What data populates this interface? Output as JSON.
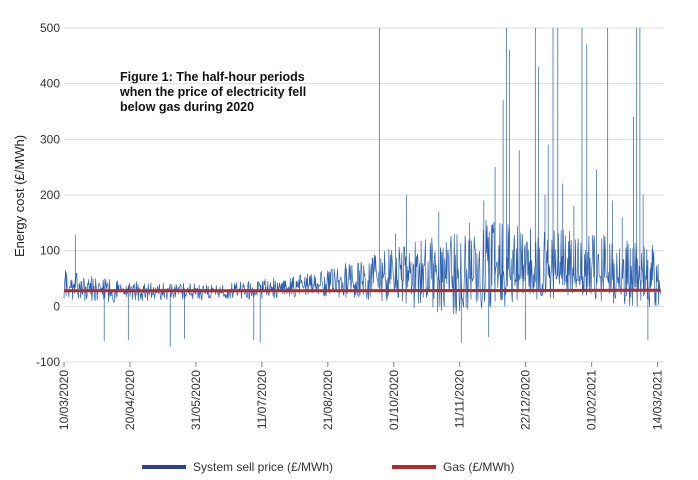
{
  "chart_data": {
    "type": "line",
    "title": "Figure 1: The half-hour periods when the price of electricity fell below gas during 2020",
    "ylabel": "Energy cost (£/MWh)",
    "xlabel": "",
    "ylim": [
      -100,
      500
    ],
    "yticks": [
      -100,
      0,
      100,
      200,
      300,
      400,
      500
    ],
    "x_range": [
      "2020-03-10",
      "2021-03-18"
    ],
    "x_tick_labels": [
      "10/03/2020",
      "20/04/2020",
      "31/05/2020",
      "11/07/2020",
      "21/08/2020",
      "01/10/2020",
      "11/11/2020",
      "22/12/2020",
      "01/02/2021",
      "14/03/2021"
    ],
    "x_tick_dates": [
      "2020-03-10",
      "2020-04-20",
      "2020-05-31",
      "2020-07-11",
      "2020-08-21",
      "2020-10-01",
      "2020-11-11",
      "2020-12-22",
      "2021-02-01",
      "2021-03-14"
    ],
    "grid": true,
    "legend_position": "bottom",
    "colors": {
      "system_sell": "#2b5fad",
      "gas": "#b22a2a",
      "grid": "#dcdcdc",
      "legend_sell": "#2e3f8f"
    },
    "series": [
      {
        "name": "System sell price (£/MWh)",
        "x": [
          "2020-03-10",
          "2020-03-24",
          "2020-04-07",
          "2020-04-21",
          "2020-05-05",
          "2020-05-19",
          "2020-06-02",
          "2020-06-16",
          "2020-06-30",
          "2020-07-14",
          "2020-07-28",
          "2020-08-11",
          "2020-08-25",
          "2020-09-08",
          "2020-09-22",
          "2020-10-06",
          "2020-10-20",
          "2020-11-03",
          "2020-11-17",
          "2020-12-01",
          "2020-12-15",
          "2020-12-29",
          "2021-01-12",
          "2021-01-26",
          "2021-02-09",
          "2021-02-23",
          "2021-03-09",
          "2021-03-16"
        ],
        "values": [
          33,
          35,
          30,
          28,
          25,
          27,
          22,
          26,
          27,
          29,
          33,
          38,
          42,
          45,
          48,
          46,
          48,
          50,
          50,
          55,
          58,
          54,
          56,
          54,
          52,
          50,
          48,
          46
        ],
        "upper": [
          70,
          55,
          50,
          46,
          42,
          44,
          40,
          44,
          45,
          50,
          55,
          60,
          70,
          85,
          100,
          110,
          120,
          130,
          140,
          160,
          150,
          140,
          140,
          130,
          130,
          120,
          110,
          100
        ],
        "lower": [
          -10,
          0,
          0,
          5,
          5,
          10,
          8,
          12,
          8,
          10,
          10,
          15,
          10,
          5,
          0,
          -10,
          -20,
          -30,
          -35,
          -20,
          -10,
          0,
          5,
          0,
          -5,
          -10,
          -15,
          -10
        ],
        "spikes": [
          {
            "x": "2020-03-17",
            "y": 128
          },
          {
            "x": "2020-04-04",
            "y": -62
          },
          {
            "x": "2020-04-19",
            "y": -60
          },
          {
            "x": "2020-05-15",
            "y": -72
          },
          {
            "x": "2020-05-24",
            "y": -58
          },
          {
            "x": "2020-07-06",
            "y": -60
          },
          {
            "x": "2020-07-10",
            "y": -65
          },
          {
            "x": "2020-09-22",
            "y": 500
          },
          {
            "x": "2020-09-22",
            "y": 180
          },
          {
            "x": "2020-10-02",
            "y": 130
          },
          {
            "x": "2020-10-09",
            "y": 200
          },
          {
            "x": "2020-10-29",
            "y": 170
          },
          {
            "x": "2020-11-12",
            "y": -65
          },
          {
            "x": "2020-11-17",
            "y": 150
          },
          {
            "x": "2020-11-26",
            "y": 190
          },
          {
            "x": "2020-11-29",
            "y": -55
          },
          {
            "x": "2020-12-03",
            "y": 250
          },
          {
            "x": "2020-12-08",
            "y": 370
          },
          {
            "x": "2020-12-10",
            "y": 500
          },
          {
            "x": "2020-12-12",
            "y": 460
          },
          {
            "x": "2020-12-18",
            "y": 280
          },
          {
            "x": "2020-12-22",
            "y": -60
          },
          {
            "x": "2020-12-28",
            "y": 500
          },
          {
            "x": "2020-12-30",
            "y": 430
          },
          {
            "x": "2021-01-03",
            "y": 200
          },
          {
            "x": "2021-01-05",
            "y": 290
          },
          {
            "x": "2021-01-08",
            "y": 500
          },
          {
            "x": "2021-01-11",
            "y": 500
          },
          {
            "x": "2021-01-14",
            "y": 220
          },
          {
            "x": "2021-01-21",
            "y": 180
          },
          {
            "x": "2021-01-26",
            "y": 500
          },
          {
            "x": "2021-01-29",
            "y": 470
          },
          {
            "x": "2021-02-04",
            "y": 245
          },
          {
            "x": "2021-02-11",
            "y": 500
          },
          {
            "x": "2021-02-14",
            "y": 190
          },
          {
            "x": "2021-02-20",
            "y": 160
          },
          {
            "x": "2021-02-27",
            "y": 340
          },
          {
            "x": "2021-03-01",
            "y": 500
          },
          {
            "x": "2021-03-03",
            "y": 500
          },
          {
            "x": "2021-03-05",
            "y": 200
          },
          {
            "x": "2021-03-08",
            "y": -60
          },
          {
            "x": "2021-03-11",
            "y": 110
          }
        ]
      },
      {
        "name": "Gas (£/MWh)",
        "x": [
          "2020-03-10",
          "2020-09-01",
          "2021-03-16"
        ],
        "values": [
          28,
          28,
          29
        ]
      }
    ]
  }
}
